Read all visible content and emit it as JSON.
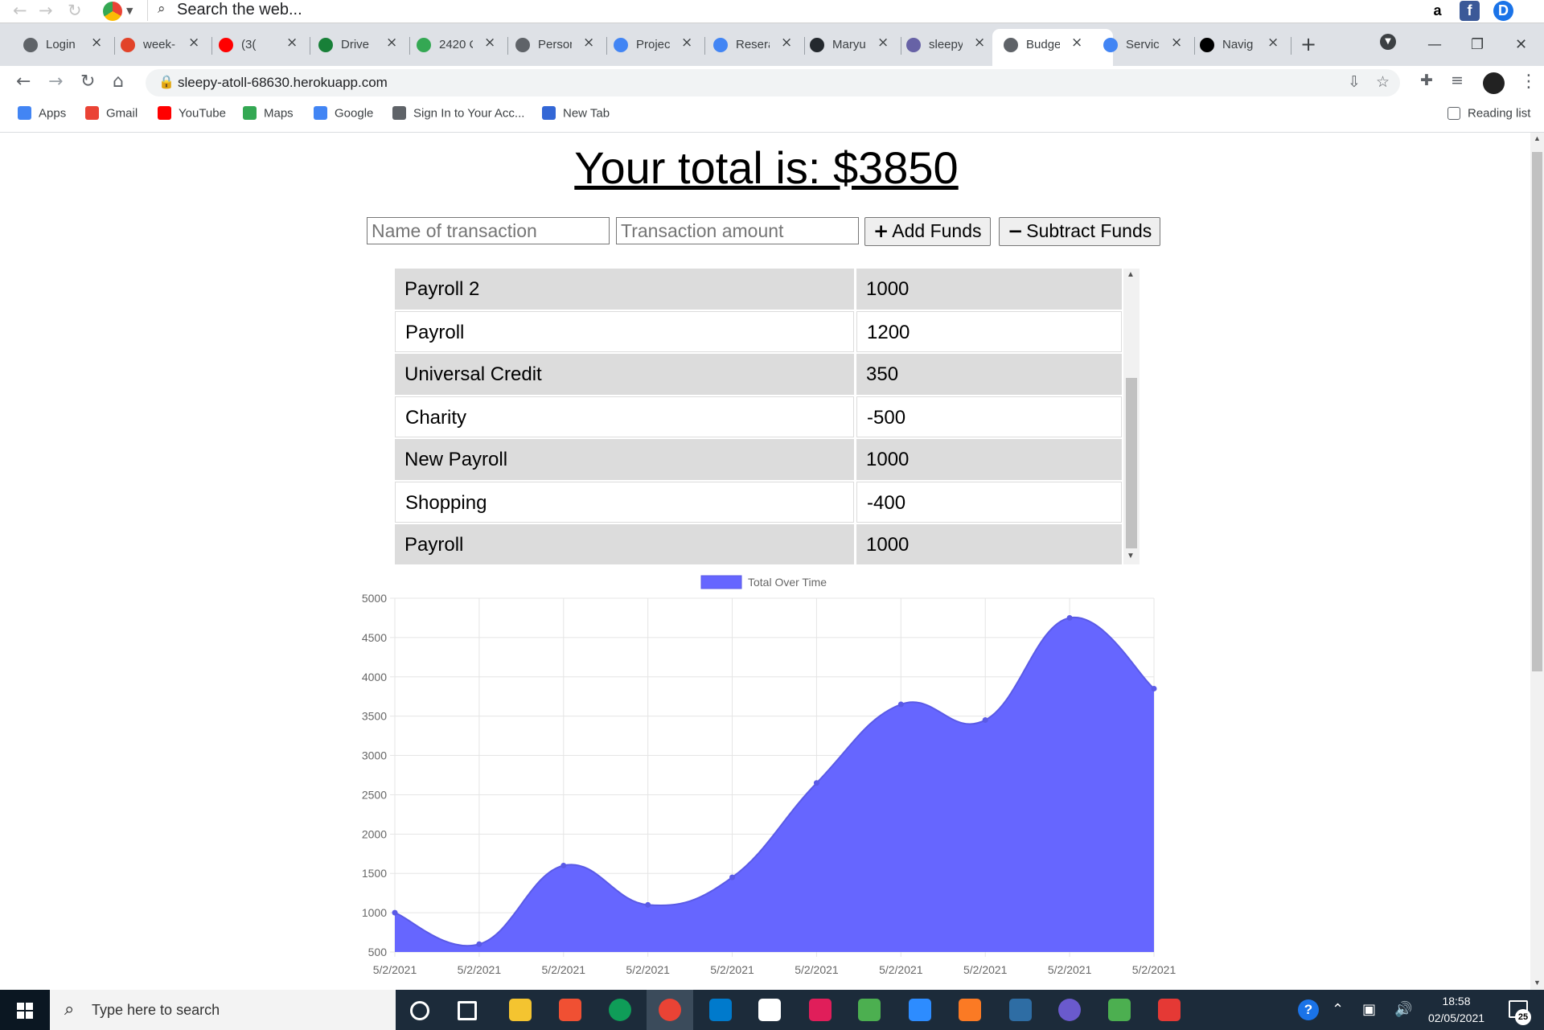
{
  "toolbar": {
    "search_placeholder": "Search the web...",
    "extensions": [
      {
        "icon": "amazon-icon",
        "glyph": "a",
        "color": "#000000"
      },
      {
        "icon": "facebook-icon",
        "glyph": "f",
        "color": "#3b5998"
      },
      {
        "icon": "d-extension-icon",
        "glyph": "D",
        "color": "#1a73e8"
      }
    ]
  },
  "tabs": [
    {
      "label": "Login",
      "icon": "globe-icon",
      "color": "#5f6368"
    },
    {
      "label": "week-",
      "icon": "gitlab-icon",
      "color": "#e24329"
    },
    {
      "label": "(3(",
      "icon": "youtube-icon",
      "color": "#ff0000"
    },
    {
      "label": "Drive",
      "icon": "drive-icon",
      "color": "#188038"
    },
    {
      "label": "2420 C",
      "icon": "maps-pin-icon",
      "color": "#34a853"
    },
    {
      "label": "Person",
      "icon": "globe-icon",
      "color": "#5f6368"
    },
    {
      "label": "Projec",
      "icon": "docs-icon",
      "color": "#4285f4"
    },
    {
      "label": "Resera",
      "icon": "docs-icon",
      "color": "#4285f4"
    },
    {
      "label": "Maryu",
      "icon": "github-icon",
      "color": "#24292e"
    },
    {
      "label": "sleepy",
      "icon": "heroku-icon",
      "color": "#6762a6"
    },
    {
      "label": "Budge",
      "icon": "page-icon",
      "color": "#5f6368",
      "active": true
    },
    {
      "label": "Servic",
      "icon": "code-icon",
      "color": "#4285f4"
    },
    {
      "label": "Navig",
      "icon": "navigation-icon",
      "color": "#000000"
    }
  ],
  "address": {
    "url": "sleepy-atoll-68630.herokuapp.com"
  },
  "bookmarks": [
    {
      "label": "Apps",
      "icon": "apps-grid-icon",
      "color": "#4285f4"
    },
    {
      "label": "Gmail",
      "icon": "gmail-icon",
      "color": "#ea4335"
    },
    {
      "label": "YouTube",
      "icon": "youtube-icon",
      "color": "#ff0000"
    },
    {
      "label": "Maps",
      "icon": "maps-pin-icon",
      "color": "#34a853"
    },
    {
      "label": "Google",
      "icon": "google-icon",
      "color": "#4285f4"
    },
    {
      "label": "Sign In to Your Acc...",
      "icon": "globe-icon",
      "color": "#5f6368"
    },
    {
      "label": "New Tab",
      "icon": "new-tab-icon",
      "color": "#3367d6"
    }
  ],
  "reading_list_label": "Reading list",
  "budget": {
    "title": "Your total is: $3850",
    "name_placeholder": "Name of transaction",
    "amount_placeholder": "Transaction amount",
    "add_label": "Add Funds",
    "subtract_label": "Subtract Funds",
    "transactions": [
      {
        "name": "Payroll 2",
        "amount": "1000"
      },
      {
        "name": "Payroll",
        "amount": "1200"
      },
      {
        "name": "Universal Credit",
        "amount": "350"
      },
      {
        "name": "Charity",
        "amount": "-500"
      },
      {
        "name": "New Payroll",
        "amount": "1000"
      },
      {
        "name": "Shopping",
        "amount": "-400"
      },
      {
        "name": "Payroll",
        "amount": "1000"
      }
    ]
  },
  "chart_data": {
    "type": "area",
    "x": [
      "5/2/2021",
      "5/2/2021",
      "5/2/2021",
      "5/2/2021",
      "5/2/2021",
      "5/2/2021",
      "5/2/2021",
      "5/2/2021",
      "5/2/2021",
      "5/2/2021"
    ],
    "series": [
      {
        "name": "Total Over Time",
        "values": [
          1000,
          600,
          1600,
          1100,
          1450,
          2650,
          3650,
          3450,
          4750,
          3850
        ],
        "color": "#6666ff"
      }
    ],
    "ylim": [
      500,
      5000
    ],
    "yticks": [
      500,
      1000,
      1500,
      2000,
      2500,
      3000,
      3500,
      4000,
      4500,
      5000
    ],
    "legend": "top",
    "grid": true
  },
  "taskbar": {
    "search_placeholder": "Type here to search",
    "time": "18:58",
    "date": "02/05/2021",
    "notification_count": "25",
    "apps": [
      {
        "icon": "cortana-icon",
        "color": "#ffffff"
      },
      {
        "icon": "task-view-icon",
        "color": "#ffffff"
      },
      {
        "icon": "file-explorer-icon",
        "color": "#f4c430"
      },
      {
        "icon": "git-app-icon",
        "color": "#f05033"
      },
      {
        "icon": "edge-icon",
        "color": "#0f9d58"
      },
      {
        "icon": "chrome-icon",
        "color": "#ea4335"
      },
      {
        "icon": "vscode-icon",
        "color": "#007acc"
      },
      {
        "icon": "store-icon",
        "color": "#ffffff"
      },
      {
        "icon": "slack-icon",
        "color": "#e01e5a"
      },
      {
        "icon": "cube-app-icon",
        "color": "#4caf50"
      },
      {
        "icon": "zoom-icon",
        "color": "#2d8cff"
      },
      {
        "icon": "xampp-icon",
        "color": "#fb7a24"
      },
      {
        "icon": "mysql-workbench-icon",
        "color": "#2e6da4"
      },
      {
        "icon": "eclipse-icon",
        "color": "#6a5acd"
      },
      {
        "icon": "rocket-app-icon",
        "color": "#4caf50"
      },
      {
        "icon": "scissors-app-icon",
        "color": "#e53935"
      }
    ]
  }
}
